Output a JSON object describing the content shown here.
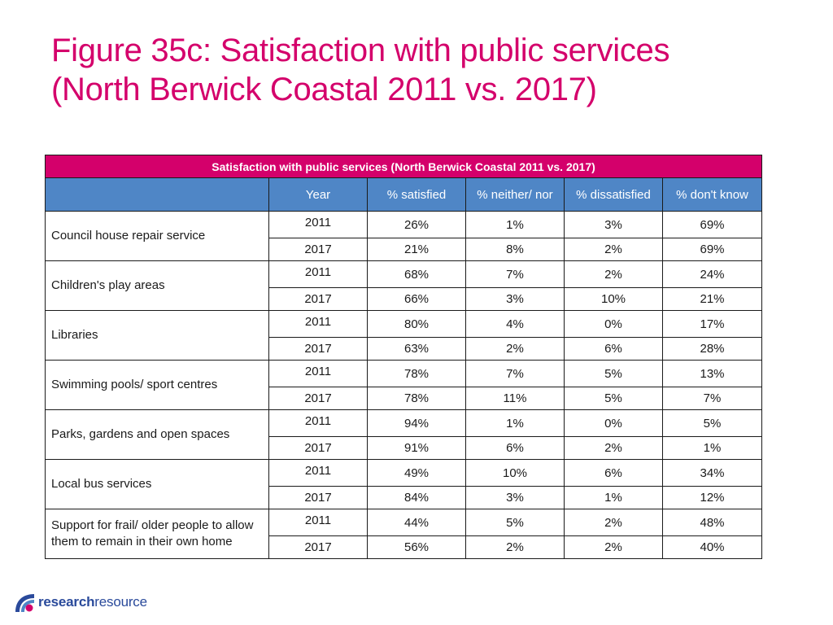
{
  "title": {
    "line1": "Figure 35c: Satisfaction with public services",
    "line2": "(North Berwick Coastal 2011 vs. 2017)"
  },
  "table": {
    "banner": "Satisfaction with public services (North Berwick Coastal 2011 vs. 2017)",
    "headers": [
      "",
      "Year",
      "% satisfied",
      "% neither/ nor",
      "% dissatisfied",
      "% don't know"
    ],
    "rows": [
      {
        "service": "Council house repair service",
        "years": [
          {
            "year": "2011",
            "satisfied": "26%",
            "neither": "1%",
            "dissatisfied": "3%",
            "dontknow": "69%"
          },
          {
            "year": "2017",
            "satisfied": "21%",
            "neither": "8%",
            "dissatisfied": "2%",
            "dontknow": "69%"
          }
        ]
      },
      {
        "service": "Children's play areas",
        "years": [
          {
            "year": "2011",
            "satisfied": "68%",
            "neither": "7%",
            "dissatisfied": "2%",
            "dontknow": "24%"
          },
          {
            "year": "2017",
            "satisfied": "66%",
            "neither": "3%",
            "dissatisfied": "10%",
            "dontknow": "21%"
          }
        ]
      },
      {
        "service": "Libraries",
        "years": [
          {
            "year": "2011",
            "satisfied": "80%",
            "neither": "4%",
            "dissatisfied": "0%",
            "dontknow": "17%"
          },
          {
            "year": "2017",
            "satisfied": "63%",
            "neither": "2%",
            "dissatisfied": "6%",
            "dontknow": "28%"
          }
        ]
      },
      {
        "service": "Swimming pools/ sport centres",
        "years": [
          {
            "year": "2011",
            "satisfied": "78%",
            "neither": "7%",
            "dissatisfied": "5%",
            "dontknow": "13%"
          },
          {
            "year": "2017",
            "satisfied": "78%",
            "neither": "11%",
            "dissatisfied": "5%",
            "dontknow": "7%"
          }
        ]
      },
      {
        "service": "Parks, gardens and open spaces",
        "years": [
          {
            "year": "2011",
            "satisfied": "94%",
            "neither": "1%",
            "dissatisfied": "0%",
            "dontknow": "5%"
          },
          {
            "year": "2017",
            "satisfied": "91%",
            "neither": "6%",
            "dissatisfied": "2%",
            "dontknow": "1%"
          }
        ]
      },
      {
        "service": "Local bus services",
        "years": [
          {
            "year": "2011",
            "satisfied": "49%",
            "neither": "10%",
            "dissatisfied": "6%",
            "dontknow": "34%"
          },
          {
            "year": "2017",
            "satisfied": "84%",
            "neither": "3%",
            "dissatisfied": "1%",
            "dontknow": "12%"
          }
        ]
      },
      {
        "service": "Support for frail/ older people to allow them to remain in their own home",
        "years": [
          {
            "year": "2011",
            "satisfied": "44%",
            "neither": "5%",
            "dissatisfied": "2%",
            "dontknow": "48%"
          },
          {
            "year": "2017",
            "satisfied": "56%",
            "neither": "2%",
            "dissatisfied": "2%",
            "dontknow": "40%"
          }
        ]
      }
    ]
  },
  "logo": {
    "bold": "research",
    "regular": "resource",
    "icon": "research-resource-logo-icon"
  },
  "colors": {
    "accent": "#d4006b",
    "header_blue": "#4f86c6",
    "logo_blue": "#2a4a9b"
  }
}
